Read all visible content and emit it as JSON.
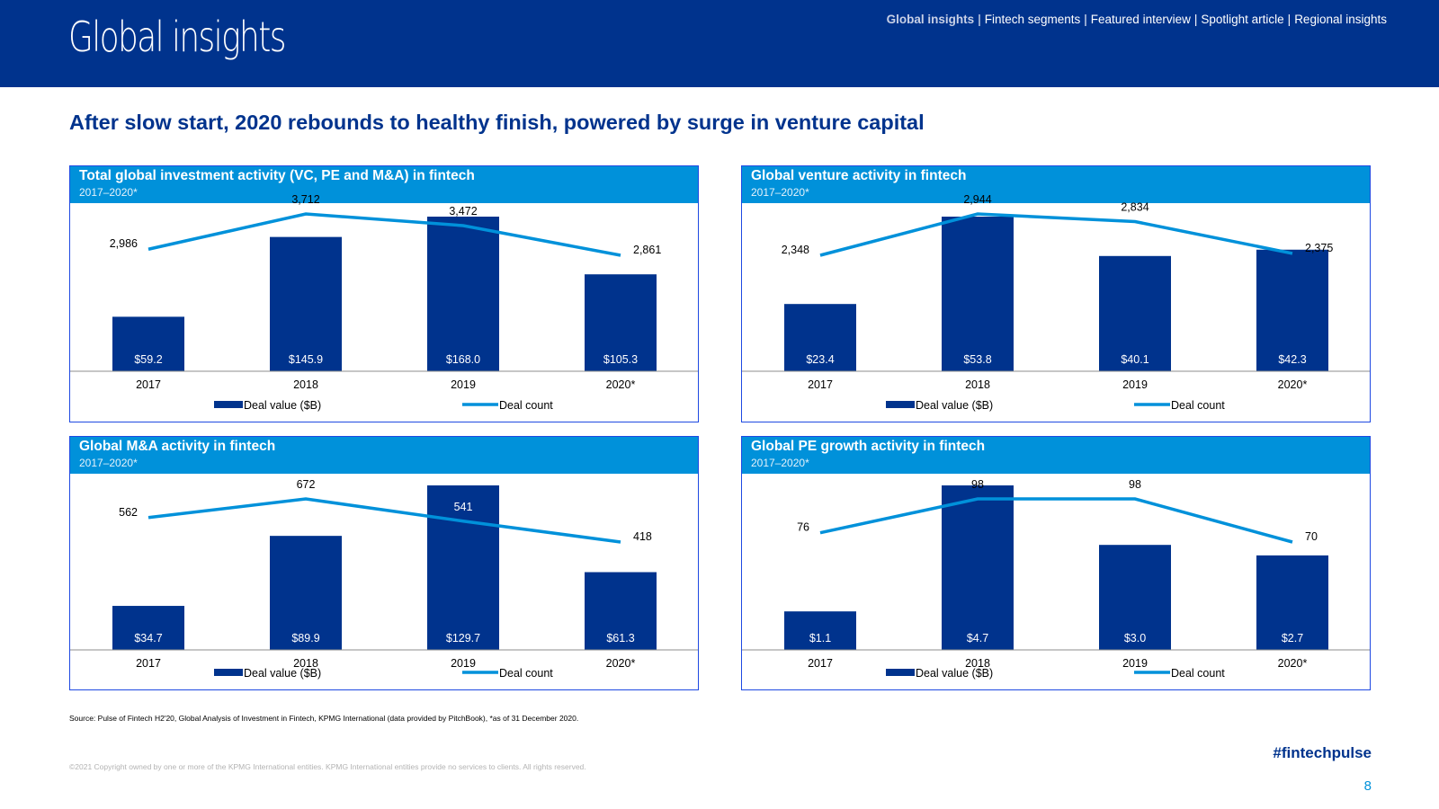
{
  "header": {
    "title": "Global insights",
    "nav": [
      "Global insights",
      "Fintech segments",
      "Featured interview",
      "Spotlight article",
      "Regional insights"
    ]
  },
  "headline": "After slow start, 2020 rebounds to healthy finish, powered by surge in venture capital",
  "colors": {
    "brand": "#00338D",
    "accent": "#0091DA",
    "bar": "#00338D",
    "line": "#0091DA"
  },
  "chart_data": [
    {
      "type": "bar",
      "title": "Total global investment activity (VC, PE and M&A) in fintech",
      "subtitle": "2017–2020*",
      "categories": [
        "2017",
        "2018",
        "2019",
        "2020*"
      ],
      "series": [
        {
          "name": "Deal value ($B)",
          "type": "bar",
          "values": [
            59.2,
            145.9,
            168.0,
            105.3
          ],
          "labels": [
            "$59.2",
            "$145.9",
            "$168.0",
            "$105.3"
          ]
        },
        {
          "name": "Deal count",
          "type": "line",
          "values": [
            2986,
            3712,
            3472,
            2861
          ],
          "labels": [
            "2,986",
            "3,712",
            "3,472",
            "2,861"
          ]
        }
      ],
      "legend": "bottom"
    },
    {
      "type": "bar",
      "title": "Global venture activity in fintech",
      "subtitle": "2017–2020*",
      "categories": [
        "2017",
        "2018",
        "2019",
        "2020*"
      ],
      "series": [
        {
          "name": "Deal value ($B)",
          "type": "bar",
          "values": [
            23.4,
            53.8,
            40.1,
            42.3
          ],
          "labels": [
            "$23.4",
            "$53.8",
            "$40.1",
            "$42.3"
          ]
        },
        {
          "name": "Deal count",
          "type": "line",
          "values": [
            2348,
            2944,
            2834,
            2375
          ],
          "labels": [
            "2,348",
            "2,944",
            "2,834",
            "2,375"
          ]
        }
      ],
      "legend": "bottom"
    },
    {
      "type": "bar",
      "title": "Global M&A activity in fintech",
      "subtitle": "2017–2020*",
      "categories": [
        "2017",
        "2018",
        "2019",
        "2020*"
      ],
      "series": [
        {
          "name": "Deal value ($B)",
          "type": "bar",
          "values": [
            34.7,
            89.9,
            129.7,
            61.3
          ],
          "labels": [
            "$34.7",
            "$89.9",
            "$129.7",
            "$61.3"
          ]
        },
        {
          "name": "Deal count",
          "type": "line",
          "values": [
            562,
            672,
            541,
            418
          ],
          "labels": [
            "562",
            "672",
            "541",
            "418"
          ]
        }
      ],
      "legend": "bottom"
    },
    {
      "type": "bar",
      "title": "Global PE growth activity in fintech",
      "subtitle": "2017–2020*",
      "categories": [
        "2017",
        "2018",
        "2019",
        "2020*"
      ],
      "series": [
        {
          "name": "Deal value ($B)",
          "type": "bar",
          "values": [
            1.1,
            4.7,
            3.0,
            2.7
          ],
          "labels": [
            "$1.1",
            "$4.7",
            "$3.0",
            "$2.7"
          ]
        },
        {
          "name": "Deal count",
          "type": "line",
          "values": [
            76,
            98,
            98,
            70
          ],
          "labels": [
            "76",
            "98",
            "98",
            "70"
          ]
        }
      ],
      "legend": "bottom"
    }
  ],
  "footer": {
    "source": "Source: Pulse of Fintech H2'20, Global Analysis of Investment in Fintech, KPMG International (data provided by PitchBook), *as of 31 December 2020.",
    "copyright": "©2021 Copyright owned by one or more of the KPMG International entities. KPMG International entities provide no services to clients. All rights reserved.",
    "hashtag": "#fintechpulse",
    "page_number": "8"
  }
}
